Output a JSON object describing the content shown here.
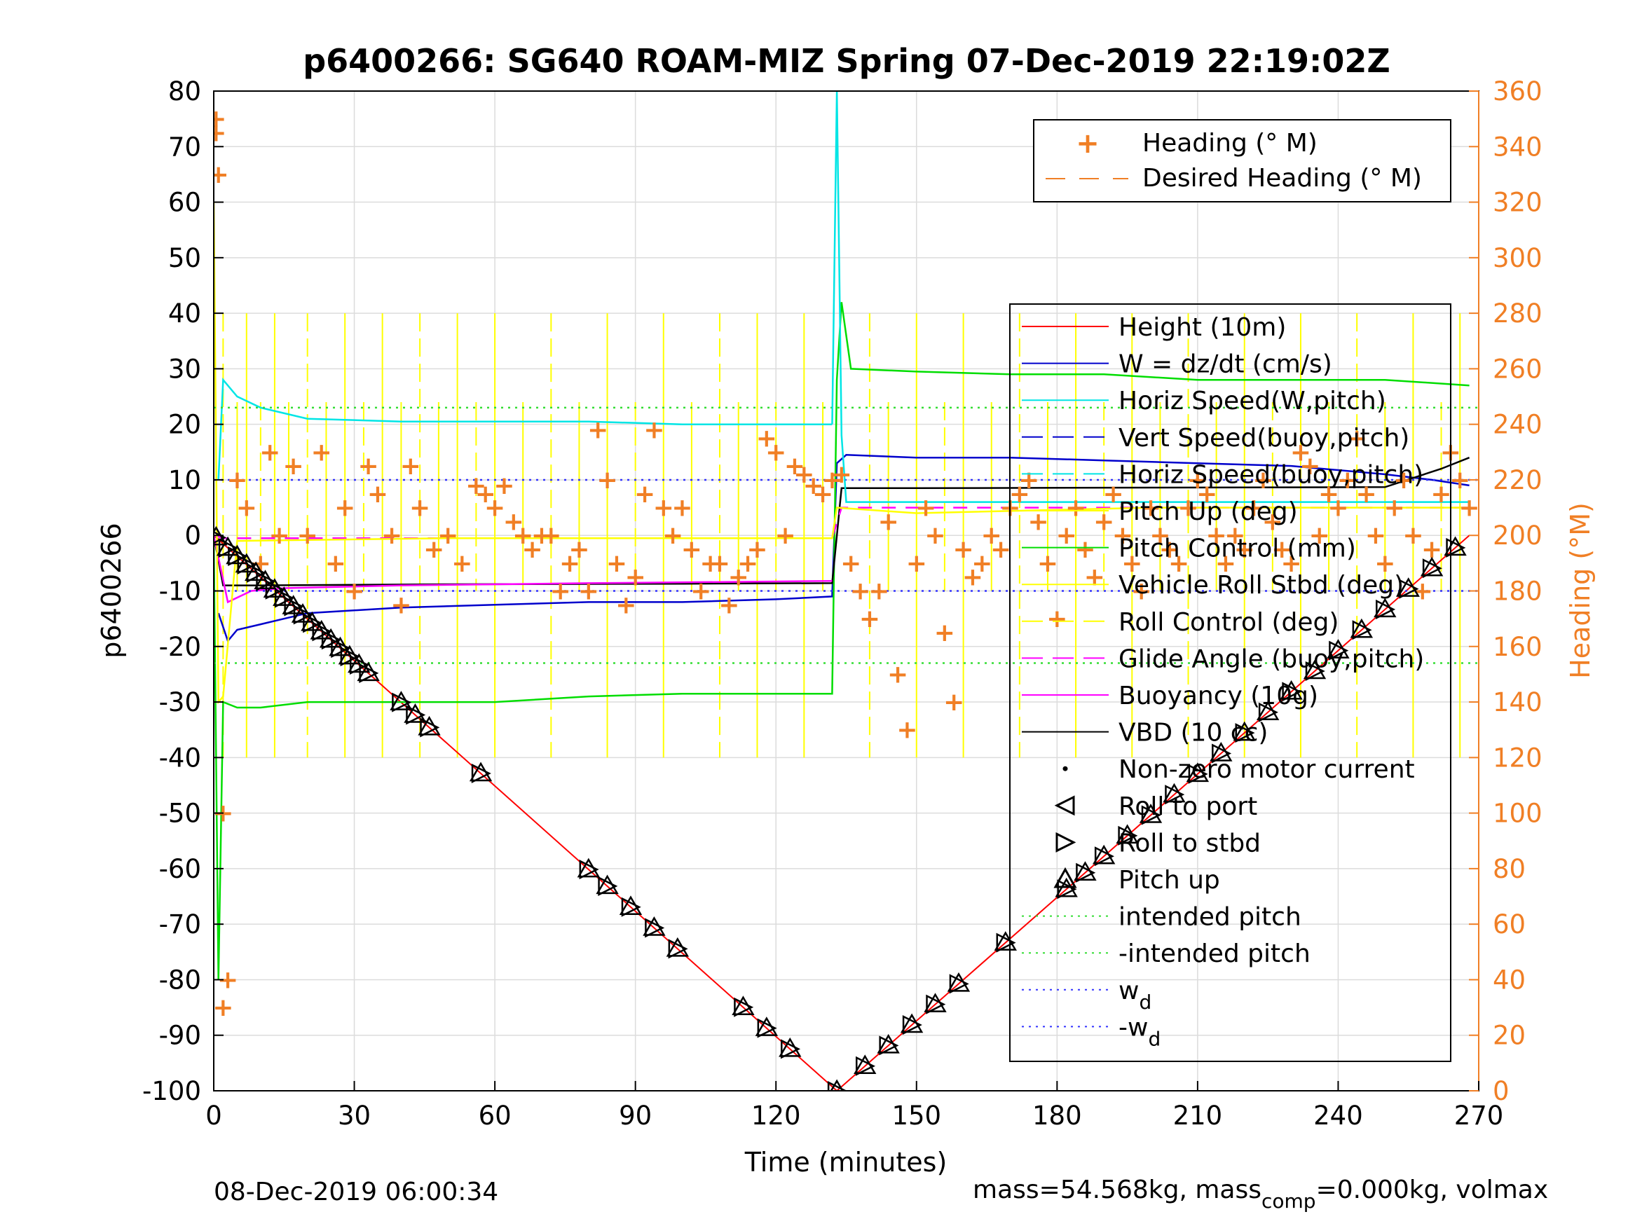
{
  "footer": {
    "date": "08-Dec-2019 06:00:34",
    "mass_prefix": "mass=54.568kg, mass",
    "mass_sub": "comp",
    "mass_suffix": "=0.000kg, volmax"
  },
  "colors": {
    "height": "#ff0000",
    "w": "#0000cc",
    "horiz": "#00e5e5",
    "pitch_up": "#ffff00",
    "pitch_ctrl": "#00dd00",
    "glide": "#ff00ff",
    "vbd": "#000000",
    "heading": "#f07f25",
    "dotted_green": "#33dd33",
    "dotted_blue": "#3333ff"
  },
  "chart_data": {
    "type": "line",
    "title": "p6400266: SG640 ROAM-MIZ Spring 07-Dec-2019 22:19:02Z",
    "xlabel": "Time (minutes)",
    "ylabel": "p6400266",
    "ylabel_right": "Heading (°M)",
    "xlim": [
      0,
      270
    ],
    "ylim": [
      -100,
      80
    ],
    "ylim_right": [
      0,
      360
    ],
    "xticks": [
      0,
      30,
      60,
      90,
      120,
      150,
      180,
      210,
      240,
      270
    ],
    "yticks": [
      80,
      70,
      60,
      50,
      40,
      30,
      20,
      10,
      0,
      -10,
      -20,
      -30,
      -40,
      -50,
      -60,
      -70,
      -80,
      -90,
      -100
    ],
    "yticks_right": [
      360,
      340,
      320,
      300,
      280,
      260,
      240,
      220,
      200,
      180,
      160,
      140,
      120,
      100,
      80,
      60,
      40,
      20,
      0
    ],
    "grid": true,
    "legend_top": {
      "placement": "top-right",
      "entries": [
        "Heading (° M)",
        "Desired Heading (° M)"
      ]
    },
    "legend_main": {
      "placement": "right",
      "entries": [
        "Height (10m)",
        "W = dz/dt (cm/s)",
        "Horiz Speed(W,pitch)",
        "Vert Speed(buoy,pitch)",
        "Horiz Speed(buoy,pitch)",
        "Pitch Up (deg)",
        "Pitch Control (mm)",
        "Vehicle Roll Stbd (deg)",
        "Roll Control (deg)",
        "Glide Angle (buoy,pitch)",
        "Buoyancy (10g)",
        "VBD (10 cc)",
        "Non-zero motor current",
        "Roll to port",
        "Roll to stbd",
        "Pitch up",
        "intended pitch",
        "-intended pitch",
        "w",
        "-w"
      ],
      "w_sub": "d"
    },
    "series": [
      {
        "key": "height",
        "x": [
          0,
          133,
          268
        ],
        "y": [
          0,
          -100,
          0
        ]
      },
      {
        "key": "w",
        "x": [
          1,
          3,
          5,
          10,
          20,
          40,
          60,
          80,
          100,
          120,
          132,
          133,
          135,
          150,
          170,
          190,
          210,
          230,
          250,
          260,
          268
        ],
        "y": [
          -14,
          -19,
          -17,
          -16,
          -14,
          -13,
          -12.5,
          -12,
          -12,
          -11.5,
          -11,
          13,
          14.5,
          14,
          14,
          13.5,
          13,
          12.5,
          11,
          10,
          9
        ]
      },
      {
        "key": "horiz",
        "x": [
          1,
          2,
          5,
          10,
          20,
          40,
          60,
          80,
          100,
          120,
          132
        ],
        "y": [
          10,
          28,
          25,
          23,
          21,
          20.5,
          20.5,
          20.5,
          20,
          20,
          20
        ]
      },
      {
        "key": "pitch_ctrl",
        "x": [
          0,
          1,
          2,
          5,
          10,
          20,
          40,
          60,
          80,
          100,
          120,
          132,
          133,
          134,
          136,
          150,
          170,
          190,
          210,
          230,
          250,
          268
        ],
        "y": [
          0,
          -80,
          -30,
          -31,
          -31,
          -30,
          -30,
          -30,
          -29,
          -28.5,
          -28.5,
          -28.5,
          28,
          42,
          30,
          29.5,
          29,
          29,
          28,
          28,
          28,
          27
        ]
      },
      {
        "key": "vbd",
        "x": [
          0,
          2,
          10,
          50,
          100,
          132,
          134,
          150,
          200,
          250,
          262,
          268
        ],
        "y": [
          0,
          -9,
          -9,
          -8.8,
          -8.7,
          -8.6,
          8.5,
          8.5,
          8.6,
          8.7,
          12,
          14
        ]
      },
      {
        "key": "glide",
        "x": [
          0,
          2,
          5,
          10,
          50,
          100,
          132,
          134,
          150,
          200,
          250,
          268
        ],
        "y": [
          0,
          -0.5,
          -0.5,
          -0.5,
          -0.5,
          -0.5,
          -0.5,
          5,
          5,
          5,
          5,
          5
        ]
      },
      {
        "key": "buoyancy",
        "x": [
          0,
          3,
          8,
          15,
          40,
          80,
          120,
          132
        ],
        "y": [
          0,
          -12,
          -10,
          -9.5,
          -9,
          -8.6,
          -8.3,
          -8.2
        ]
      },
      {
        "key": "pitch_up",
        "x": [
          0,
          1,
          2,
          5,
          50,
          100,
          132,
          133,
          150,
          200,
          268
        ],
        "y": [
          60,
          -30,
          -29,
          -1,
          -0.5,
          -0.5,
          -0.5,
          5,
          4,
          5,
          5
        ]
      },
      {
        "key": "intended_pitch",
        "y_const": 23
      },
      {
        "key": "neg_intended_pitch",
        "y_const": -23
      },
      {
        "key": "wd",
        "y_const": 10
      },
      {
        "key": "neg_wd",
        "y_const": -10
      }
    ],
    "roll_markers": {
      "x": [
        0.5,
        3,
        5,
        7,
        9,
        11,
        13,
        15,
        17,
        19,
        21,
        23,
        25,
        27,
        29,
        31,
        33,
        40,
        43,
        46,
        57,
        80,
        84,
        89,
        94,
        99,
        113,
        118,
        123,
        133,
        139,
        144,
        149,
        154,
        159,
        169,
        182,
        186,
        190,
        195,
        200,
        205,
        210,
        215,
        220,
        225,
        230,
        235,
        240,
        245,
        250,
        255,
        260,
        265
      ]
    },
    "heading": {
      "x": [
        0.5,
        0.5,
        1,
        2,
        2,
        3,
        5,
        7,
        10,
        12,
        14,
        17,
        20,
        23,
        26,
        28,
        30,
        33,
        35,
        38,
        40,
        42,
        44,
        47,
        50,
        53,
        56,
        58,
        60,
        62,
        64,
        66,
        68,
        70,
        72,
        74,
        76,
        78,
        80,
        82,
        84,
        86,
        88,
        90,
        92,
        94,
        96,
        98,
        100,
        102,
        104,
        106,
        108,
        110,
        112,
        114,
        116,
        118,
        120,
        122,
        124,
        126,
        128,
        130,
        132,
        134,
        136,
        138,
        140,
        142,
        144,
        146,
        148,
        150,
        152,
        154,
        156,
        158,
        160,
        162,
        164,
        166,
        168,
        170,
        172,
        174,
        176,
        178,
        180,
        182,
        184,
        186,
        188,
        190,
        192,
        194,
        196,
        198,
        200,
        202,
        204,
        206,
        208,
        210,
        212,
        214,
        216,
        218,
        220,
        222,
        224,
        226,
        228,
        230,
        232,
        234,
        236,
        238,
        240,
        242,
        244,
        246,
        248,
        250,
        252,
        254,
        256,
        258,
        260,
        262,
        264,
        266,
        268
      ],
      "y": [
        350,
        345,
        330,
        30,
        100,
        40,
        220,
        210,
        190,
        230,
        200,
        225,
        200,
        230,
        190,
        210,
        180,
        225,
        215,
        200,
        175,
        225,
        210,
        195,
        200,
        190,
        218,
        215,
        210,
        218,
        205,
        200,
        195,
        200,
        200,
        180,
        190,
        195,
        180,
        238,
        220,
        190,
        175,
        185,
        215,
        238,
        210,
        200,
        210,
        195,
        180,
        190,
        190,
        175,
        185,
        190,
        195,
        235,
        230,
        200,
        225,
        222,
        218,
        215,
        220,
        222,
        190,
        180,
        170,
        180,
        205,
        150,
        130,
        190,
        210,
        200,
        165,
        140,
        195,
        185,
        190,
        200,
        195,
        210,
        215,
        220,
        205,
        190,
        170,
        200,
        210,
        195,
        185,
        205,
        215,
        200,
        190,
        180,
        210,
        200,
        195,
        190,
        210,
        220,
        215,
        200,
        190,
        200,
        195,
        210,
        220,
        205,
        195,
        190,
        230,
        225,
        200,
        215,
        210,
        220,
        235,
        215,
        200,
        190,
        210,
        220,
        200,
        180,
        195,
        215,
        230,
        220,
        210
      ]
    }
  }
}
